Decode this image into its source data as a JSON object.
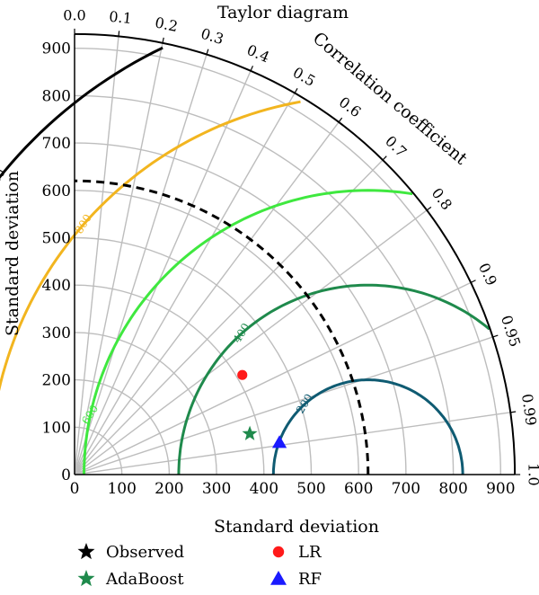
{
  "chart_data": {
    "type": "scatter",
    "title": "Taylor diagram",
    "xlabel": "Standard deviation",
    "ylabel": "Standard deviation",
    "correlation_label": "Correlation coefficient",
    "std_range": [
      0,
      930
    ],
    "std_ticks": [
      "0",
      "100",
      "200",
      "300",
      "400",
      "500",
      "600",
      "700",
      "800",
      "900"
    ],
    "correlation_ticks": [
      "0.0",
      "0.1",
      "0.2",
      "0.3",
      "0.4",
      "0.5",
      "0.6",
      "0.7",
      "0.8",
      "0.9",
      "0.95",
      "0.99",
      "1.0"
    ],
    "correlation_values": [
      0.0,
      0.1,
      0.2,
      0.3,
      0.4,
      0.5,
      0.6,
      0.7,
      0.8,
      0.9,
      0.95,
      0.99,
      1.0
    ],
    "grid": true,
    "reference": {
      "name": "Observed",
      "std": 620,
      "color": "#000000",
      "marker": "star"
    },
    "rms_contours": [
      {
        "value": 200,
        "label": "200",
        "color": "#0f5b72"
      },
      {
        "value": 400,
        "label": "400",
        "color": "#1f8a4c"
      },
      {
        "value": 600,
        "label": "600",
        "color": "#3fe83f"
      },
      {
        "value": 800,
        "label": "800",
        "color": "#f2b51f"
      },
      {
        "value": 1000,
        "label": "1,000",
        "color": "#000000"
      }
    ],
    "series": [
      {
        "name": "Observed",
        "std": 620,
        "correlation": 1.0,
        "color": "#000000",
        "marker": "star"
      },
      {
        "name": "LR",
        "std": 412,
        "correlation": 0.86,
        "color": "#ff1a1a",
        "marker": "circle"
      },
      {
        "name": "AdaBoost",
        "std": 380,
        "correlation": 0.974,
        "color": "#1f8a4c",
        "marker": "star"
      },
      {
        "name": "RF",
        "std": 438,
        "correlation": 0.988,
        "color": "#1a1aff",
        "marker": "triangle"
      }
    ],
    "legend": {
      "placement": "bottom",
      "columns": 2
    }
  }
}
